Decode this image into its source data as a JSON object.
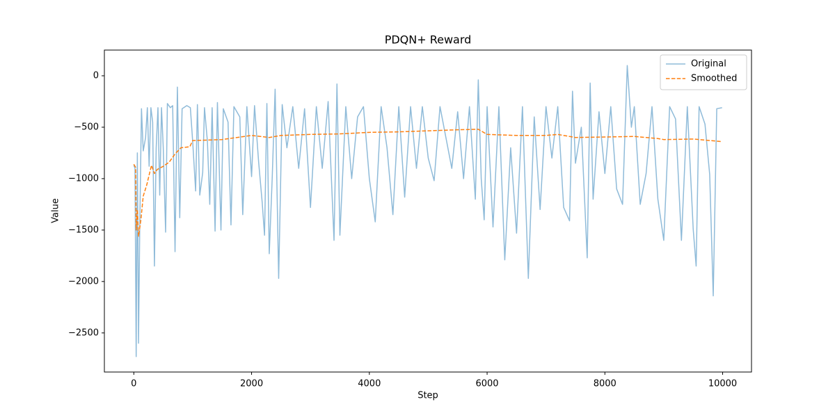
{
  "chart_data": {
    "type": "line",
    "title": "PDQN+ Reward",
    "x_label": "Step",
    "y_label": "Value",
    "xlim": [
      -500,
      10490
    ],
    "ylim": [
      -2880,
      250
    ],
    "xticks": [
      0,
      2000,
      4000,
      6000,
      8000,
      10000
    ],
    "yticks": [
      {
        "value": -2500,
        "label": "−2500"
      },
      {
        "value": -2000,
        "label": "−2000"
      },
      {
        "value": -1500,
        "label": "−1500"
      },
      {
        "value": -1000,
        "label": "−1000"
      },
      {
        "value": -500,
        "label": "−500"
      },
      0
    ],
    "grid": false,
    "legend": "upper right",
    "series": [
      {
        "name": "Original",
        "color": "#1f77b4",
        "alpha": 0.5,
        "dashed": false,
        "x": [
          0,
          20,
          40,
          60,
          80,
          100,
          130,
          160,
          200,
          230,
          260,
          290,
          320,
          350,
          380,
          410,
          440,
          470,
          500,
          540,
          570,
          620,
          660,
          700,
          740,
          780,
          820,
          900,
          960,
          1000,
          1050,
          1080,
          1120,
          1170,
          1200,
          1250,
          1290,
          1330,
          1380,
          1420,
          1480,
          1520,
          1600,
          1650,
          1700,
          1800,
          1850,
          1920,
          2000,
          2050,
          2120,
          2180,
          2220,
          2260,
          2300,
          2350,
          2400,
          2460,
          2520,
          2600,
          2700,
          2800,
          2900,
          3000,
          3100,
          3200,
          3300,
          3400,
          3450,
          3500,
          3600,
          3700,
          3800,
          3900,
          4000,
          4100,
          4200,
          4300,
          4400,
          4500,
          4600,
          4700,
          4800,
          4900,
          5000,
          5100,
          5200,
          5300,
          5400,
          5500,
          5600,
          5700,
          5800,
          5850,
          5900,
          5950,
          6000,
          6100,
          6200,
          6300,
          6400,
          6500,
          6600,
          6700,
          6800,
          6900,
          7000,
          7100,
          7200,
          7300,
          7400,
          7450,
          7500,
          7600,
          7700,
          7750,
          7800,
          7900,
          8000,
          8100,
          8200,
          8300,
          8380,
          8450,
          8500,
          8600,
          8700,
          8800,
          8900,
          9000,
          9100,
          9200,
          9300,
          9400,
          9500,
          9550,
          9600,
          9700,
          9780,
          9840,
          9900,
          9990
        ],
        "values": [
          -870,
          -900,
          -2730,
          -750,
          -2600,
          -1500,
          -320,
          -730,
          -600,
          -310,
          -880,
          -310,
          -450,
          -1850,
          -700,
          -310,
          -1160,
          -310,
          -700,
          -1520,
          -270,
          -310,
          -290,
          -1710,
          -110,
          -1380,
          -320,
          -290,
          -310,
          -640,
          -1120,
          -280,
          -1160,
          -940,
          -310,
          -640,
          -1250,
          -310,
          -1510,
          -260,
          -1500,
          -320,
          -450,
          -1450,
          -300,
          -400,
          -1350,
          -300,
          -980,
          -290,
          -840,
          -1230,
          -1550,
          -270,
          -1730,
          -1000,
          -130,
          -1970,
          -280,
          -700,
          -300,
          -900,
          -320,
          -1280,
          -300,
          -900,
          -250,
          -1600,
          -80,
          -1550,
          -300,
          -1000,
          -400,
          -300,
          -1000,
          -1420,
          -300,
          -700,
          -1350,
          -300,
          -1180,
          -300,
          -900,
          -300,
          -800,
          -1020,
          -300,
          -600,
          -900,
          -350,
          -1000,
          -300,
          -1200,
          -40,
          -1000,
          -1400,
          -300,
          -1470,
          -300,
          -1790,
          -700,
          -1530,
          -300,
          -1970,
          -400,
          -1300,
          -300,
          -800,
          -300,
          -1280,
          -1410,
          -150,
          -850,
          -500,
          -1770,
          -70,
          -1200,
          -350,
          -950,
          -300,
          -1100,
          -1250,
          100,
          -500,
          -300,
          -1250,
          -950,
          -300,
          -1200,
          -1600,
          -300,
          -420,
          -1600,
          -300,
          -1490,
          -1850,
          -300,
          -470,
          -960,
          -2140,
          -320,
          -310
        ]
      },
      {
        "name": "Smoothed",
        "color": "#ff7f0e",
        "alpha": 1,
        "dashed": true,
        "x": [
          0,
          30,
          40,
          60,
          80,
          120,
          160,
          220,
          300,
          350,
          400,
          500,
          600,
          700,
          800,
          950,
          1000,
          1500,
          2000,
          2300,
          2500,
          3000,
          3500,
          4000,
          4500,
          5000,
          5500,
          5850,
          6000,
          6500,
          7000,
          7200,
          7500,
          8000,
          8500,
          8900,
          9000,
          9500,
          9990
        ],
        "values": [
          -860,
          -890,
          -1500,
          -1300,
          -1560,
          -1400,
          -1170,
          -1060,
          -870,
          -950,
          -910,
          -880,
          -840,
          -760,
          -700,
          -690,
          -630,
          -620,
          -580,
          -600,
          -580,
          -570,
          -565,
          -550,
          -545,
          -535,
          -525,
          -520,
          -570,
          -580,
          -580,
          -570,
          -600,
          -595,
          -590,
          -610,
          -620,
          -615,
          -640
        ]
      }
    ]
  }
}
